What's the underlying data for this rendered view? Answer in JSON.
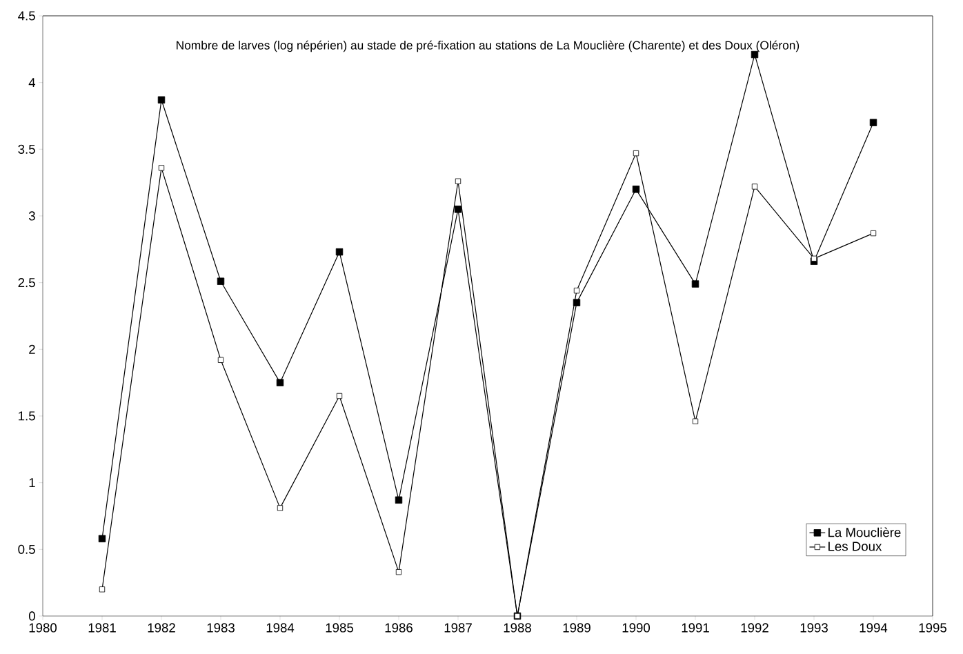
{
  "chart_data": {
    "type": "line",
    "title": "Nombre de larves (log népérien) au stade de pré-fixation au stations de La Mouclière (Charente) et des Doux (Oléron)",
    "x": [
      1981,
      1982,
      1983,
      1984,
      1985,
      1986,
      1987,
      1988,
      1989,
      1990,
      1991,
      1992,
      1993,
      1994
    ],
    "series": [
      {
        "name": "La Mouclière",
        "color": "#000000",
        "values": [
          0.58,
          3.87,
          2.51,
          1.75,
          2.73,
          0.87,
          3.05,
          0,
          2.35,
          3.2,
          2.49,
          4.21,
          2.66,
          3.7
        ]
      },
      {
        "name": "Les Doux",
        "color": "#000000",
        "values": [
          0.2,
          3.36,
          1.92,
          0.81,
          1.65,
          0.33,
          3.26,
          0,
          2.44,
          3.47,
          1.46,
          3.22,
          2.68,
          2.87
        ]
      }
    ],
    "xlim": [
      1980,
      1995
    ],
    "xticks": [
      1980,
      1981,
      1982,
      1983,
      1984,
      1985,
      1986,
      1987,
      1988,
      1989,
      1990,
      1991,
      1992,
      1993,
      1994,
      1995
    ],
    "ylim": [
      0,
      4.5
    ],
    "yticks": [
      0,
      0.5,
      1,
      1.5,
      2,
      2.5,
      3,
      3.5,
      4,
      4.5
    ],
    "grid": false,
    "legend": "bottom right",
    "marker": "square",
    "line_style": "solid"
  }
}
